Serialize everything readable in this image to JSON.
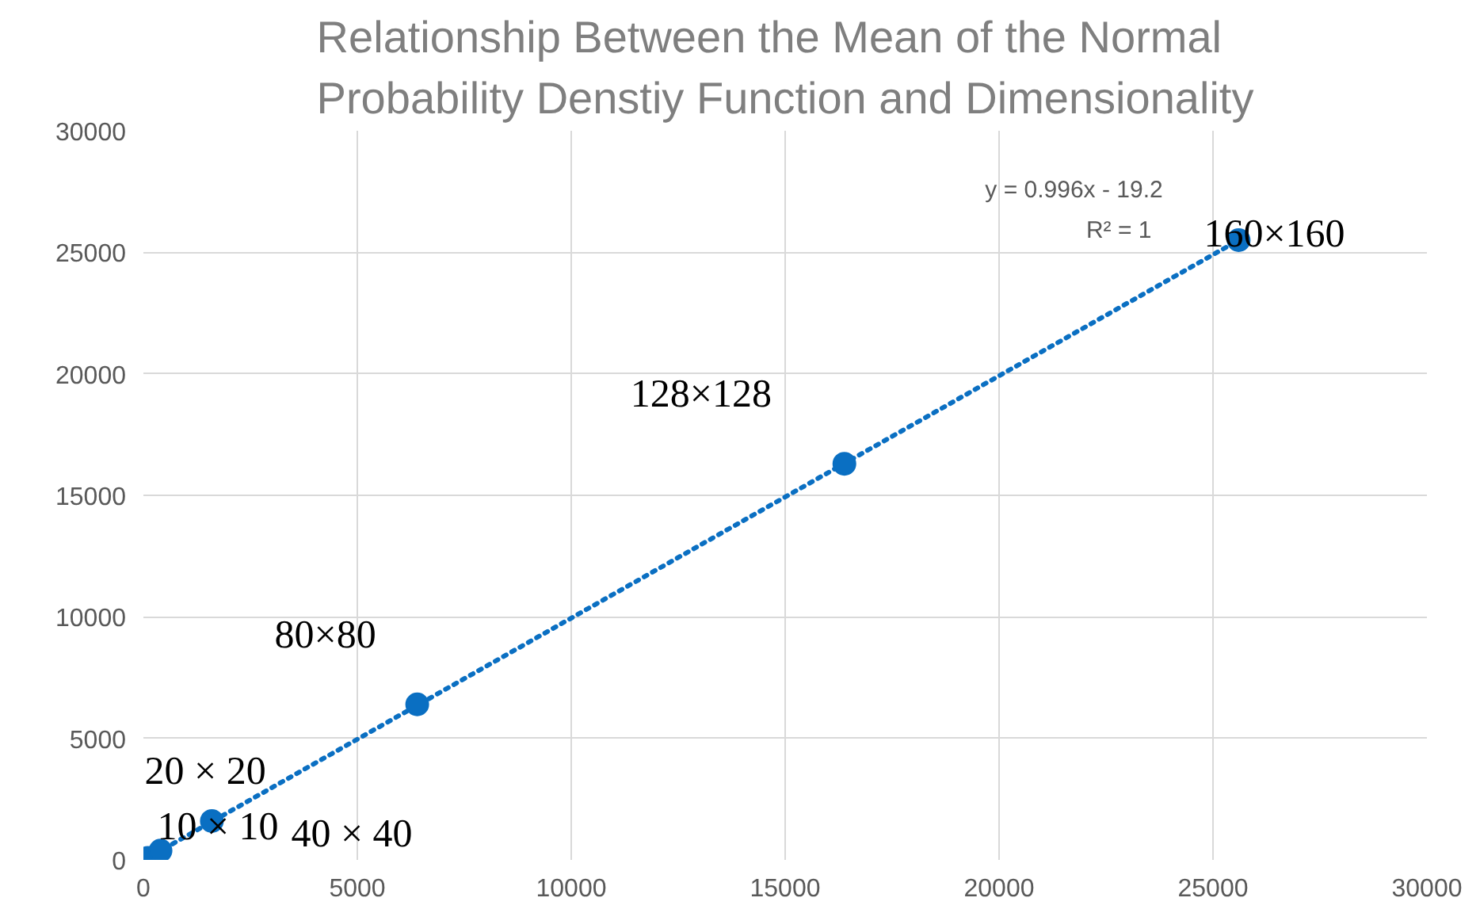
{
  "chart_data": {
    "type": "scatter",
    "title": "Relationship Between the Mean of the Normal Probability Denstiy Function and Dimensionality",
    "x": [
      100,
      400,
      1600,
      6400,
      16384,
      25600
    ],
    "series": [
      {
        "color": "#0a6fc2",
        "values": [
          80,
          380,
          1600,
          6400,
          16300,
          25500
        ],
        "marker": "circle"
      },
      {
        "type": "line",
        "color": "#0a6fc2",
        "x": [
          100,
          25600
        ],
        "values": [
          80,
          25500
        ],
        "line_style": "dotted"
      }
    ],
    "annotations": [
      {
        "text": "10 × 10",
        "x": 100,
        "y": 80
      },
      {
        "text": "20 × 20",
        "x": 400,
        "y": 380
      },
      {
        "text": "40 × 40",
        "x": 1600,
        "y": 1600
      },
      {
        "text": "80×80",
        "x": 6400,
        "y": 6400
      },
      {
        "text": "128×128",
        "x": 16384,
        "y": 16300
      },
      {
        "text": "160×160",
        "x": 25600,
        "y": 25500
      },
      "y = 0.996x - 19.2",
      "R² = 1"
    ],
    "xlim": [
      0,
      30000
    ],
    "ylim": [
      0,
      30000
    ],
    "xticks": [
      0,
      5000,
      10000,
      15000,
      20000,
      25000,
      30000
    ],
    "yticks": [
      0,
      5000,
      10000,
      15000,
      20000,
      25000,
      30000
    ],
    "grid": true
  }
}
